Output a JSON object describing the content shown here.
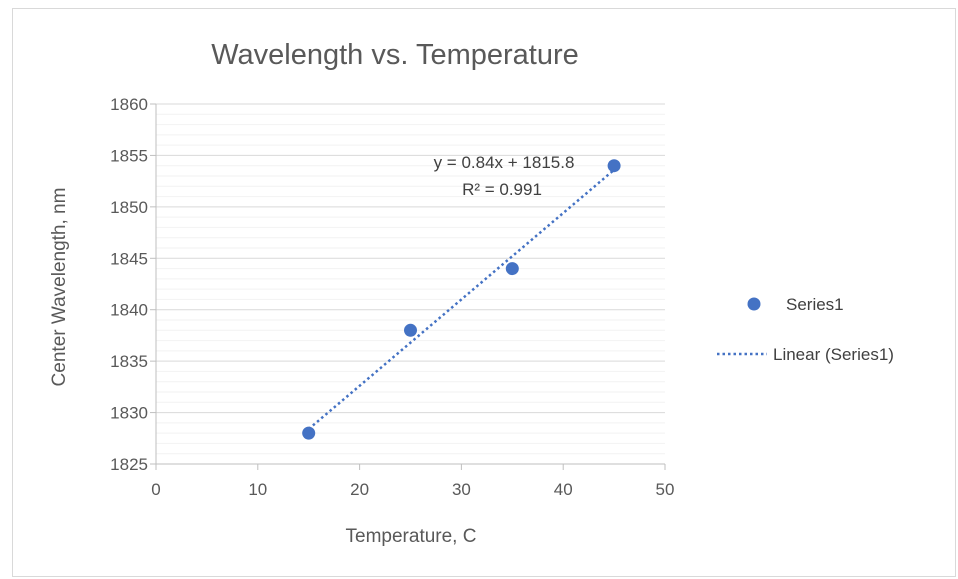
{
  "chart_data": {
    "type": "scatter",
    "title": "Wavelength vs. Temperature",
    "xlabel": "Temperature, C",
    "ylabel": "Center Wavelength, nm",
    "xlim": [
      0,
      50
    ],
    "ylim": [
      1825,
      1860
    ],
    "x_ticks": [
      0,
      10,
      20,
      30,
      40,
      50
    ],
    "y_ticks": [
      1825,
      1830,
      1835,
      1840,
      1845,
      1850,
      1855,
      1860
    ],
    "y_minor_step": 1,
    "grid": true,
    "legend_position": "right",
    "series": [
      {
        "name": "Series1",
        "color": "#4472c4",
        "points": [
          {
            "x": 15,
            "y": 1828
          },
          {
            "x": 25,
            "y": 1838
          },
          {
            "x": 35,
            "y": 1844
          },
          {
            "x": 45,
            "y": 1854
          }
        ]
      }
    ],
    "trendline": {
      "name": "Linear (Series1)",
      "type": "linear",
      "slope": 0.84,
      "intercept": 1815.8,
      "x_range": [
        15,
        45
      ],
      "equation_label": "y = 0.84x + 1815.8",
      "r2_label": "R² = 0.991",
      "color": "#4472c4",
      "style": "dotted"
    }
  }
}
